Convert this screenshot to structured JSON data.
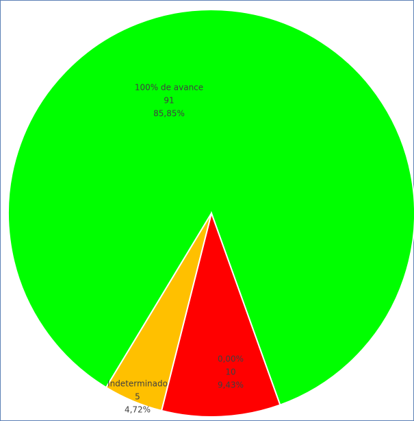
{
  "chart_data": {
    "type": "pie",
    "categories": [
      "100% de avance",
      "0,00%",
      "Indeterminado"
    ],
    "values": [
      91,
      10,
      5
    ],
    "percent_labels": [
      "85,85%",
      "9,43%",
      "4,72%"
    ],
    "colors": [
      "#00ff00",
      "#ff0000",
      "#ffc000"
    ]
  }
}
